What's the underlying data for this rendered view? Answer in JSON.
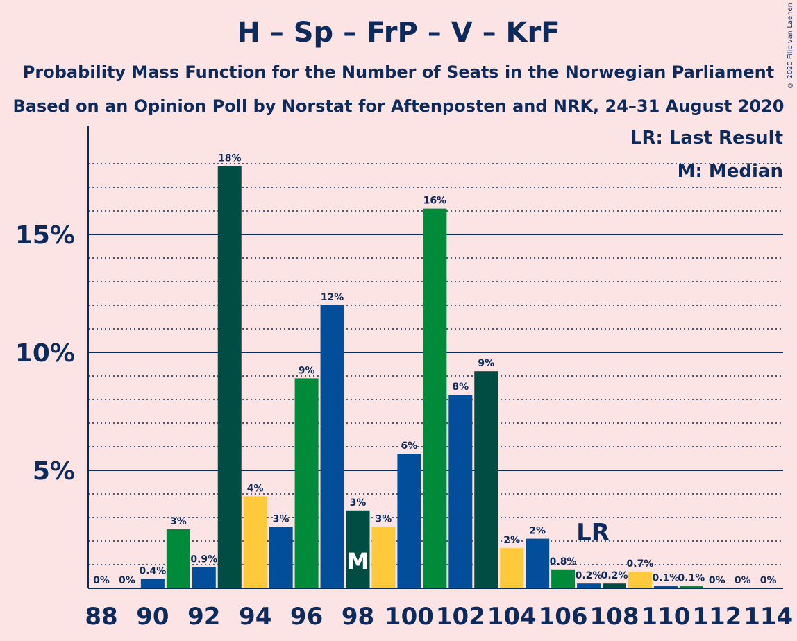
{
  "title": "H – Sp – FrP – V – KrF",
  "subtitle1": "Probability Mass Function for the Number of Seats in the Norwegian Parliament",
  "subtitle2": "Based on an Opinion Poll by Norstat for Aftenposten and NRK, 24–31 August 2020",
  "copyright": "© 2020 Filip van Laenen",
  "legend": {
    "lr": "LR: Last Result",
    "m": "M: Median"
  },
  "markers": {
    "lr_label": "LR",
    "lr_seat": 107,
    "median_label": "M",
    "median_seat": 98
  },
  "colors": {
    "H": "#034e9a",
    "Sp": "#008a3a",
    "FrP": "#024d43",
    "V": "#ffc93c",
    "axis": "#0d2a5c",
    "background": "#fde4e4"
  },
  "chart_data": {
    "type": "bar",
    "x": [
      88,
      89,
      90,
      91,
      92,
      93,
      94,
      95,
      96,
      97,
      98,
      99,
      100,
      101,
      102,
      103,
      104,
      105,
      106,
      107,
      108,
      109,
      110,
      111,
      112,
      113,
      114
    ],
    "values": [
      0,
      0,
      0.4,
      2.5,
      0.9,
      17.9,
      3.9,
      2.6,
      8.9,
      12.0,
      3.3,
      2.6,
      5.7,
      16.1,
      8.2,
      9.2,
      1.7,
      2.1,
      0.8,
      0.2,
      0.2,
      0.7,
      0.1,
      0.1,
      0,
      0,
      0
    ],
    "labels": [
      "0%",
      "0%",
      "0.4%",
      "3%",
      "0.9%",
      "18%",
      "4%",
      "3%",
      "9%",
      "12%",
      "3%",
      "3%",
      "6%",
      "16%",
      "8%",
      "9%",
      "2%",
      "2%",
      "0.8%",
      "0.2%",
      "0.2%",
      "0.7%",
      "0.1%",
      "0.1%",
      "0%",
      "0%",
      "0%"
    ],
    "bar_colors": [
      "#034e9a",
      "#008a3a",
      "#034e9a",
      "#008a3a",
      "#034e9a",
      "#024d43",
      "#ffc93c",
      "#034e9a",
      "#008a3a",
      "#034e9a",
      "#024d43",
      "#ffc93c",
      "#034e9a",
      "#008a3a",
      "#034e9a",
      "#024d43",
      "#ffc93c",
      "#034e9a",
      "#008a3a",
      "#034e9a",
      "#024d43",
      "#ffc93c",
      "#034e9a",
      "#008a3a",
      "#034e9a",
      "#024d43",
      "#ffc93c"
    ],
    "x_ticks": [
      "88",
      "90",
      "92",
      "94",
      "96",
      "98",
      "100",
      "102",
      "104",
      "106",
      "108",
      "110",
      "112",
      "114"
    ],
    "y_ticks": [
      "5%",
      "10%",
      "15%"
    ],
    "ylim": [
      0,
      19.5
    ],
    "xlabel": "",
    "ylabel": "",
    "grid": true
  }
}
